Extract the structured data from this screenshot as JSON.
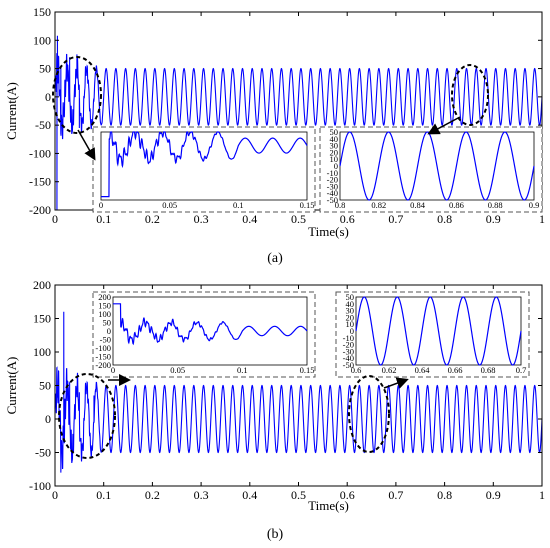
{
  "colors": {
    "signal": "#0000ff",
    "axis": "#000000",
    "inset_border": "#555555",
    "background": "#ffffff"
  },
  "chart_data": [
    {
      "type": "line",
      "panel_label": "(a)",
      "xlabel": "Time(s)",
      "ylabel": "Current(A)",
      "xlim": [
        0,
        1
      ],
      "ylim": [
        -200,
        150
      ],
      "xticks": [
        "0",
        "0.1",
        "0.2",
        "0.3",
        "0.4",
        "0.5",
        "0.6",
        "0.7",
        "0.8",
        "0.9",
        "1"
      ],
      "yticks": [
        "150",
        "100",
        "50",
        "0",
        "-50",
        "-100",
        "-150",
        "-200"
      ],
      "grid": false,
      "series": [
        {
          "frequency_hz": 50,
          "steady_state_amplitude": 50,
          "transient_end_time": 0.1,
          "transient_peaks": [
            {
              "x": 0.005,
              "y": 108
            },
            {
              "x": 0.004,
              "y": -200
            },
            {
              "x": 0.012,
              "y": 55
            },
            {
              "x": 0.03,
              "y": 70
            },
            {
              "x": 0.045,
              "y": 75
            },
            {
              "x": 0.05,
              "y": -55
            }
          ]
        }
      ],
      "annotations": [
        {
          "type": "ellipse",
          "target_range_x": [
            0,
            0.1
          ]
        },
        {
          "type": "ellipse",
          "target_range_x": [
            0.8,
            0.9
          ]
        }
      ],
      "insets": [
        {
          "xlim": [
            0,
            0.15
          ],
          "ylim": [
            -200,
            50
          ],
          "xticks": [
            "0",
            "0.05",
            "0.1",
            "0.15"
          ],
          "yticks": []
        },
        {
          "xlim": [
            0.8,
            0.9
          ],
          "ylim": [
            -50,
            50
          ],
          "xticks": [
            "0.8",
            "0.82",
            "0.84",
            "0.86",
            "0.88",
            "0.9"
          ],
          "yticks": [
            "50",
            "40",
            "30",
            "20",
            "10",
            "0",
            "-10",
            "-20",
            "-30",
            "-40",
            "-50"
          ]
        }
      ]
    },
    {
      "type": "line",
      "panel_label": "(b)",
      "xlabel": "Time(s)",
      "ylabel": "Current(A)",
      "xlim": [
        0,
        1
      ],
      "ylim": [
        -100,
        200
      ],
      "xticks": [
        "0",
        "0.1",
        "0.2",
        "0.3",
        "0.4",
        "0.5",
        "0.6",
        "0.7",
        "0.8",
        "0.9",
        "1"
      ],
      "yticks": [
        "200",
        "150",
        "100",
        "50",
        "0",
        "-50",
        "-100"
      ],
      "grid": false,
      "series": [
        {
          "frequency_hz": 50,
          "steady_state_amplitude": 50,
          "transient_end_time": 0.1,
          "transient_peaks": [
            {
              "x": 0.018,
              "y": 160
            },
            {
              "x": 0.012,
              "y": -80
            },
            {
              "x": 0.03,
              "y": 55
            },
            {
              "x": 0.05,
              "y": 40
            },
            {
              "x": 0.08,
              "y": 35
            }
          ]
        }
      ],
      "annotations": [
        {
          "type": "ellipse",
          "target_range_x": [
            0,
            0.1
          ]
        },
        {
          "type": "ellipse",
          "target_range_x": [
            0.6,
            0.7
          ]
        }
      ],
      "insets": [
        {
          "xlim": [
            0,
            0.15
          ],
          "ylim": [
            -200,
            200
          ],
          "xticks": [
            "0",
            "0.05",
            "0.1",
            "0.15"
          ],
          "yticks": [
            "200",
            "150",
            "100",
            "50",
            "0",
            "-50",
            "-100",
            "-150",
            "-200"
          ]
        },
        {
          "xlim": [
            0.6,
            0.7
          ],
          "ylim": [
            -50,
            50
          ],
          "xticks": [
            "0.6",
            "0.62",
            "0.64",
            "0.66",
            "0.68",
            "0.7"
          ],
          "yticks": [
            "50",
            "40",
            "30",
            "20",
            "10",
            "0",
            "-10",
            "-20",
            "-30",
            "-40",
            "-50"
          ]
        }
      ]
    }
  ]
}
